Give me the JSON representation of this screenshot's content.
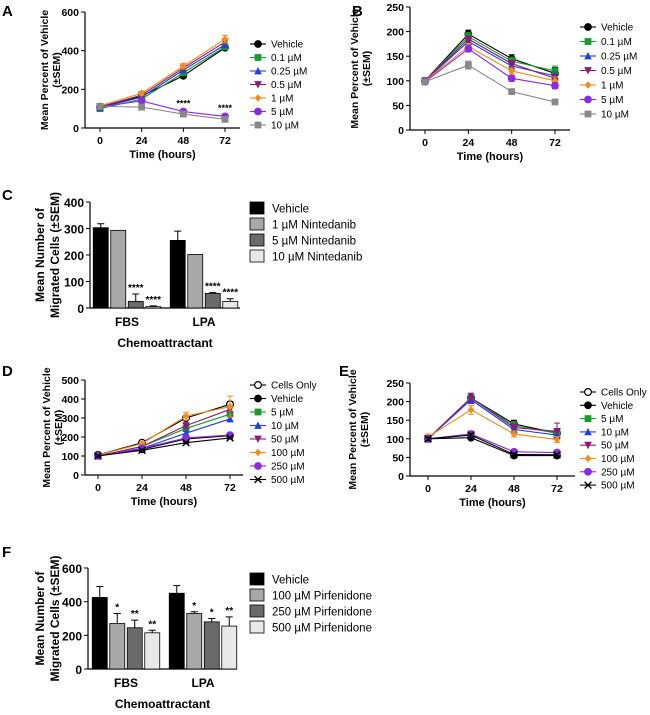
{
  "chart_data": [
    {
      "id": "A",
      "type": "line",
      "panel_label": "A",
      "title": "",
      "ylabel_lines": [
        "Mean Percent of Vehicle",
        "(±SEM)"
      ],
      "xlabel": "Time (hours)",
      "x": [
        0,
        24,
        48,
        72
      ],
      "xticks": [
        "0",
        "24",
        "48",
        "72"
      ],
      "yticks": [
        0,
        200,
        400,
        600
      ],
      "ylim": [
        0,
        600
      ],
      "series": [
        {
          "name": "Vehicle",
          "color": "#000000",
          "marker": "circle",
          "values": [
            105,
            165,
            270,
            415
          ],
          "errors": [
            0,
            0,
            0,
            0
          ]
        },
        {
          "name": "0.1 µM",
          "color": "#1a9a2e",
          "marker": "square",
          "values": [
            100,
            150,
            285,
            420
          ],
          "errors": [
            0,
            0,
            0,
            0
          ]
        },
        {
          "name": "0.25 µM",
          "color": "#1f3fe0",
          "marker": "triangle",
          "values": [
            105,
            160,
            300,
            430
          ],
          "errors": [
            0,
            0,
            0,
            0
          ]
        },
        {
          "name": "0.5 µM",
          "color": "#8a1a78",
          "marker": "tridown",
          "values": [
            110,
            170,
            310,
            445
          ],
          "errors": [
            0,
            0,
            0,
            0
          ]
        },
        {
          "name": "1 µM",
          "color": "#f28c1c",
          "marker": "diamond",
          "values": [
            115,
            180,
            320,
            460
          ],
          "errors": [
            10,
            10,
            15,
            20
          ]
        },
        {
          "name": "5 µM",
          "color": "#8a2be2",
          "marker": "circle-fill",
          "values": [
            110,
            140,
            85,
            60
          ],
          "errors": [
            0,
            0,
            0,
            0
          ]
        },
        {
          "name": "10 µM",
          "color": "#888888",
          "marker": "square",
          "values": [
            112,
            108,
            72,
            45
          ],
          "errors": [
            0,
            0,
            0,
            0
          ]
        }
      ],
      "annotations": [
        {
          "x": 48,
          "y": 110,
          "text": "****"
        },
        {
          "x": 72,
          "y": 88,
          "text": "****"
        }
      ]
    },
    {
      "id": "B",
      "type": "line",
      "panel_label": "B",
      "title": "",
      "ylabel_lines": [
        "Mean Percent of Vehicle",
        "(±SEM)"
      ],
      "xlabel": "Time (hours)",
      "x": [
        0,
        24,
        48,
        72
      ],
      "xticks": [
        "0",
        "24",
        "48",
        "72"
      ],
      "yticks": [
        0,
        50,
        100,
        150,
        200,
        250
      ],
      "ylim": [
        0,
        250
      ],
      "series": [
        {
          "name": "Vehicle",
          "color": "#000000",
          "marker": "circle",
          "values": [
            100,
            195,
            145,
            115
          ],
          "errors": [
            3,
            8,
            8,
            12
          ]
        },
        {
          "name": "0.1 µM",
          "color": "#1a9a2e",
          "marker": "square",
          "values": [
            100,
            190,
            140,
            120
          ],
          "errors": [
            3,
            8,
            8,
            10
          ]
        },
        {
          "name": "0.25 µM",
          "color": "#1f3fe0",
          "marker": "triangle",
          "values": [
            100,
            180,
            130,
            110
          ],
          "errors": [
            3,
            6,
            6,
            8
          ]
        },
        {
          "name": "0.5 µM",
          "color": "#8a1a78",
          "marker": "tridown",
          "values": [
            100,
            185,
            135,
            105
          ],
          "errors": [
            3,
            6,
            6,
            8
          ]
        },
        {
          "name": "1 µM",
          "color": "#f28c1c",
          "marker": "diamond",
          "values": [
            100,
            170,
            120,
            100
          ],
          "errors": [
            3,
            6,
            6,
            8
          ]
        },
        {
          "name": "5 µM",
          "color": "#8a2be2",
          "marker": "circle-fill",
          "values": [
            98,
            165,
            105,
            90
          ],
          "errors": [
            3,
            6,
            6,
            6
          ]
        },
        {
          "name": "10 µM",
          "color": "#888888",
          "marker": "square",
          "values": [
            98,
            132,
            78,
            57
          ],
          "errors": [
            3,
            8,
            4,
            4
          ]
        }
      ],
      "annotations": []
    },
    {
      "id": "C",
      "type": "bar",
      "panel_label": "C",
      "title": "",
      "ylabel_lines": [
        "Mean Number of",
        "Migrated Cells (±SEM)"
      ],
      "xlabel": "Chemoattractant",
      "categories": [
        "FBS",
        "LPA"
      ],
      "yticks": [
        0,
        100,
        200,
        300,
        400
      ],
      "ylim": [
        0,
        400
      ],
      "series": [
        {
          "name": "Vehicle",
          "color": "#000000",
          "values": [
            303,
            255
          ],
          "errors": [
            15,
            35
          ],
          "stars": [
            "",
            ""
          ]
        },
        {
          "name": "1 µM Nintedanib",
          "color": "#a8a8a8",
          "values": [
            293,
            202
          ],
          "errors": [
            0,
            0
          ],
          "stars": [
            "",
            ""
          ]
        },
        {
          "name": "5 µM Nintedanib",
          "color": "#6a6a6a",
          "values": [
            25,
            55
          ],
          "errors": [
            28,
            3
          ],
          "stars": [
            "****",
            "****"
          ]
        },
        {
          "name": "10 µM Nintedanib",
          "color": "#e8e8e8",
          "values": [
            5,
            25
          ],
          "errors": [
            3,
            10
          ],
          "stars": [
            "****",
            "****"
          ]
        }
      ]
    },
    {
      "id": "D",
      "type": "line",
      "panel_label": "D",
      "title": "",
      "ylabel_lines": [
        "Mean Percent of Vehicle",
        "(±SEM)"
      ],
      "xlabel": "Time (hours)",
      "x": [
        0,
        24,
        48,
        72
      ],
      "xticks": [
        "0",
        "24",
        "48",
        "72"
      ],
      "yticks": [
        0,
        100,
        200,
        300,
        400,
        500
      ],
      "ylim": [
        0,
        500
      ],
      "series": [
        {
          "name": "Cells Only",
          "color": "#000000",
          "marker": "circle-open",
          "values": [
            105,
            170,
            300,
            372
          ],
          "errors": [
            5,
            8,
            12,
            15
          ]
        },
        {
          "name": "Vehicle",
          "color": "#000000",
          "marker": "circle",
          "values": [
            105,
            135,
            190,
            207
          ],
          "errors": [
            5,
            5,
            8,
            8
          ]
        },
        {
          "name": "5 µM",
          "color": "#1a9a2e",
          "marker": "square",
          "values": [
            100,
            150,
            245,
            320
          ],
          "errors": [
            5,
            8,
            15,
            15
          ]
        },
        {
          "name": "10 µM",
          "color": "#1f3fe0",
          "marker": "triangle",
          "values": [
            100,
            140,
            220,
            295
          ],
          "errors": [
            5,
            5,
            10,
            12
          ]
        },
        {
          "name": "50 µM",
          "color": "#8a1a78",
          "marker": "tridown",
          "values": [
            100,
            150,
            260,
            345
          ],
          "errors": [
            5,
            8,
            15,
            15
          ]
        },
        {
          "name": "100 µM",
          "color": "#f28c1c",
          "marker": "diamond",
          "values": [
            105,
            165,
            310,
            360
          ],
          "errors": [
            5,
            8,
            20,
            55
          ]
        },
        {
          "name": "250 µM",
          "color": "#8a2be2",
          "marker": "circle-fill",
          "values": [
            100,
            140,
            195,
            210
          ],
          "errors": [
            5,
            5,
            8,
            8
          ]
        },
        {
          "name": "500 µM",
          "color": "#000000",
          "marker": "x",
          "values": [
            100,
            130,
            170,
            195
          ],
          "errors": [
            5,
            5,
            5,
            5
          ]
        }
      ],
      "annotations": []
    },
    {
      "id": "E",
      "type": "line",
      "panel_label": "E",
      "title": "",
      "ylabel_lines": [
        "Mean Percent of Vehicle",
        "(±SEM)"
      ],
      "xlabel": "Time (hours)",
      "x": [
        0,
        24,
        48,
        72
      ],
      "xticks": [
        "0",
        "24",
        "48",
        "72"
      ],
      "yticks": [
        0,
        50,
        100,
        150,
        200,
        250
      ],
      "ylim": [
        0,
        250
      ],
      "series": [
        {
          "name": "Cells Only",
          "color": "#000000",
          "marker": "circle-open",
          "values": [
            100,
            210,
            140,
            115
          ],
          "errors": [
            8,
            12,
            10,
            10
          ]
        },
        {
          "name": "Vehicle",
          "color": "#000000",
          "marker": "circle",
          "values": [
            100,
            103,
            55,
            55
          ],
          "errors": [
            5,
            5,
            3,
            3
          ]
        },
        {
          "name": "5 µM",
          "color": "#1a9a2e",
          "marker": "square",
          "values": [
            100,
            210,
            135,
            115
          ],
          "errors": [
            8,
            12,
            10,
            10
          ]
        },
        {
          "name": "10 µM",
          "color": "#1f3fe0",
          "marker": "triangle",
          "values": [
            100,
            205,
            125,
            110
          ],
          "errors": [
            8,
            10,
            10,
            10
          ]
        },
        {
          "name": "50 µM",
          "color": "#8a1a78",
          "marker": "tridown",
          "values": [
            100,
            210,
            130,
            120
          ],
          "errors": [
            8,
            12,
            10,
            22
          ]
        },
        {
          "name": "100 µM",
          "color": "#f28c1c",
          "marker": "diamond",
          "values": [
            105,
            178,
            113,
            98
          ],
          "errors": [
            8,
            12,
            8,
            8
          ]
        },
        {
          "name": "250 µM",
          "color": "#8a2be2",
          "marker": "circle-fill",
          "values": [
            100,
            113,
            65,
            63
          ],
          "errors": [
            5,
            8,
            5,
            5
          ]
        },
        {
          "name": "500 µM",
          "color": "#000000",
          "marker": "x",
          "values": [
            100,
            110,
            58,
            57
          ],
          "errors": [
            5,
            5,
            3,
            3
          ]
        }
      ],
      "annotations": []
    },
    {
      "id": "F",
      "type": "bar",
      "panel_label": "F",
      "title": "",
      "ylabel_lines": [
        "Mean Number of",
        "Migrated Cells (±SEM)"
      ],
      "xlabel": "Chemoattractant",
      "categories": [
        "FBS",
        "LPA"
      ],
      "yticks": [
        0,
        200,
        400,
        600
      ],
      "ylim": [
        0,
        600
      ],
      "series": [
        {
          "name": "Vehicle",
          "color": "#000000",
          "values": [
            425,
            450
          ],
          "errors": [
            65,
            45
          ],
          "stars": [
            "",
            ""
          ]
        },
        {
          "name": "100 µM Pirfenidone",
          "color": "#a8a8a8",
          "values": [
            270,
            330
          ],
          "errors": [
            60,
            10
          ],
          "stars": [
            "*",
            "*"
          ]
        },
        {
          "name": "250 µM Pirfenidone",
          "color": "#6a6a6a",
          "values": [
            245,
            280
          ],
          "errors": [
            45,
            20
          ],
          "stars": [
            "**",
            "*"
          ]
        },
        {
          "name": "500 µM Pirfenidone",
          "color": "#e8e8e8",
          "values": [
            215,
            255
          ],
          "errors": [
            15,
            55
          ],
          "stars": [
            "**",
            "**"
          ]
        }
      ]
    }
  ]
}
